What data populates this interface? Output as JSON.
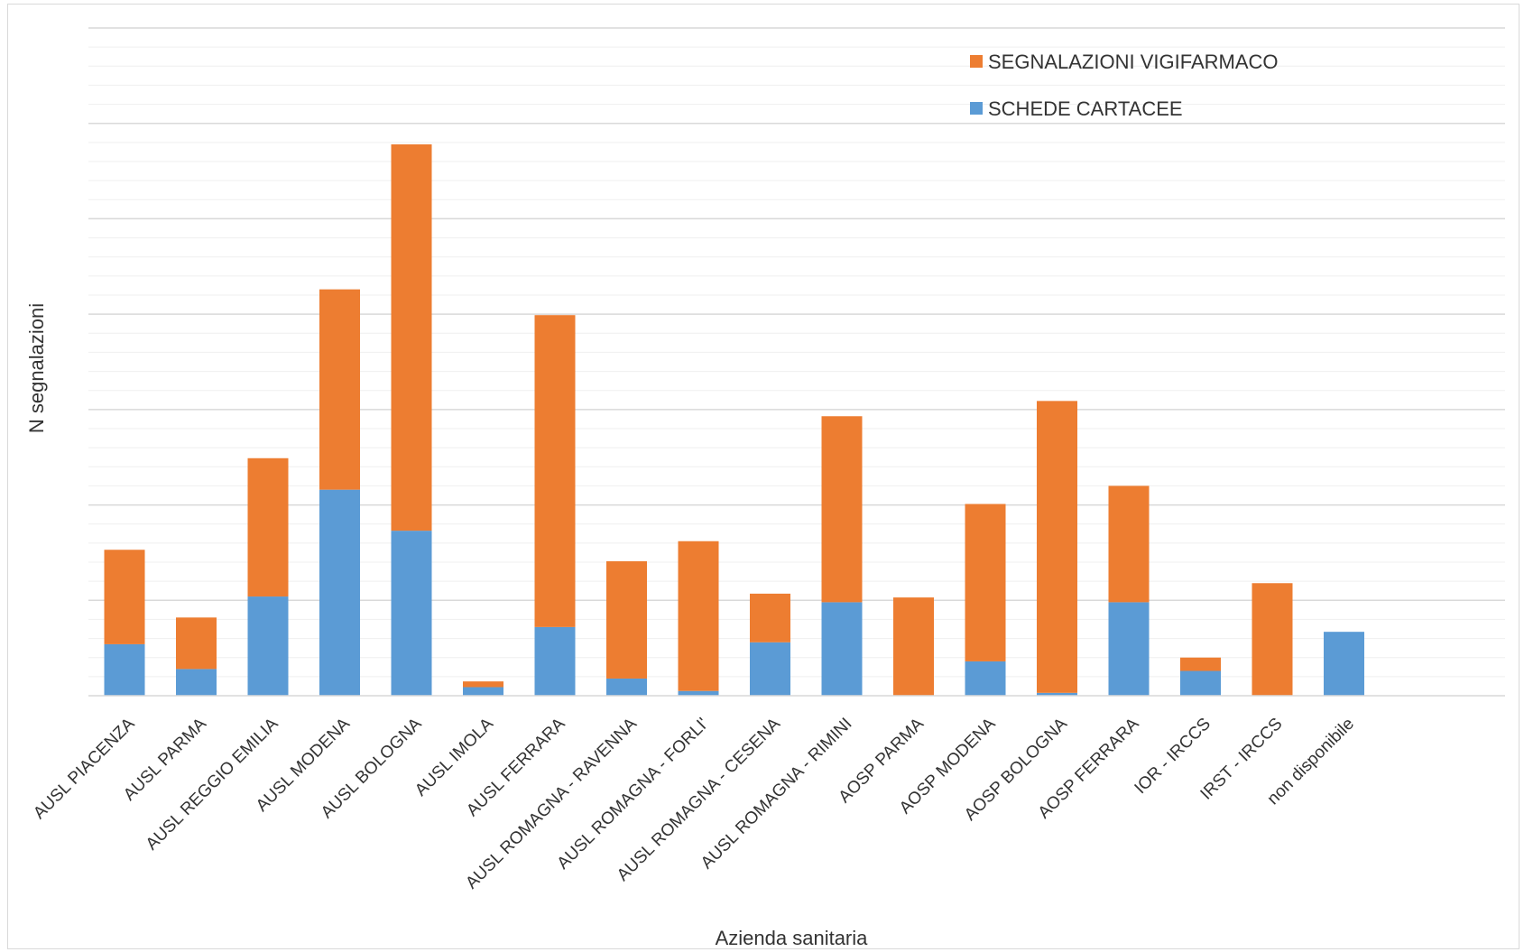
{
  "chart_data": {
    "type": "bar",
    "stacked": true,
    "xlabel": "Azienda sanitaria",
    "ylabel": "N segnalazioni",
    "ylim": [
      0,
      35
    ],
    "y_ticks_shown": false,
    "grid": true,
    "legend_position": "top-right",
    "categories": [
      "AUSL PIACENZA",
      "AUSL PARMA",
      "AUSL REGGIO EMILIA",
      "AUSL MODENA",
      "AUSL BOLOGNA",
      "AUSL IMOLA",
      "AUSL FERRARA",
      "AUSL ROMAGNA - RAVENNA",
      "AUSL ROMAGNA - FORLI'",
      "AUSL ROMAGNA - CESENA",
      "AUSL ROMAGNA - RIMINI",
      "AOSP PARMA",
      "AOSP MODENA",
      "AOSP BOLOGNA",
      "AOSP FERRARA",
      "IOR - IRCCS",
      "IRST - IRCCS",
      "non disponibile"
    ],
    "series": [
      {
        "name": "SCHEDE CARTACEE",
        "color": "#5b9bd5",
        "values": [
          2.7,
          1.4,
          5.2,
          10.8,
          8.65,
          0.45,
          3.6,
          0.9,
          0.25,
          2.8,
          4.9,
          0,
          1.8,
          0.15,
          4.9,
          1.3,
          0,
          3.35
        ]
      },
      {
        "name": "SEGNALAZIONI VIGIFARMACO",
        "color": "#ed7d31",
        "values": [
          4.95,
          2.7,
          7.25,
          10.5,
          20.25,
          0.3,
          16.35,
          6.15,
          7.85,
          2.55,
          9.75,
          5.15,
          8.25,
          15.3,
          6.1,
          0.7,
          5.9,
          0
        ]
      }
    ]
  }
}
